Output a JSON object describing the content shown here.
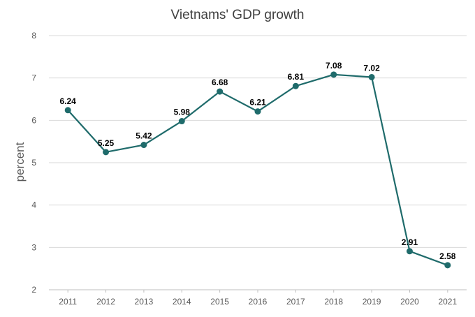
{
  "chart_data": {
    "type": "line",
    "title": "Vietnams' GDP growth",
    "xlabel": "",
    "ylabel": "percent",
    "categories": [
      "2011",
      "2012",
      "2013",
      "2014",
      "2015",
      "2016",
      "2017",
      "2018",
      "2019",
      "2020",
      "2021"
    ],
    "series": [
      {
        "name": "GDP growth",
        "values": [
          6.24,
          5.25,
          5.42,
          5.98,
          6.68,
          6.21,
          6.81,
          7.08,
          7.02,
          2.91,
          2.58
        ],
        "labels": [
          "6.24",
          "5.25",
          "5.42",
          "5.98",
          "6.68",
          "6.21",
          "6.81",
          "7.08",
          "7.02",
          "2.91",
          "2.58"
        ]
      }
    ],
    "yticks": [
      "2",
      "3",
      "4",
      "5",
      "6",
      "7",
      "8"
    ],
    "ylim": [
      2,
      8
    ],
    "grid": true,
    "legend": "none",
    "line_color": "#1f6b6b"
  }
}
